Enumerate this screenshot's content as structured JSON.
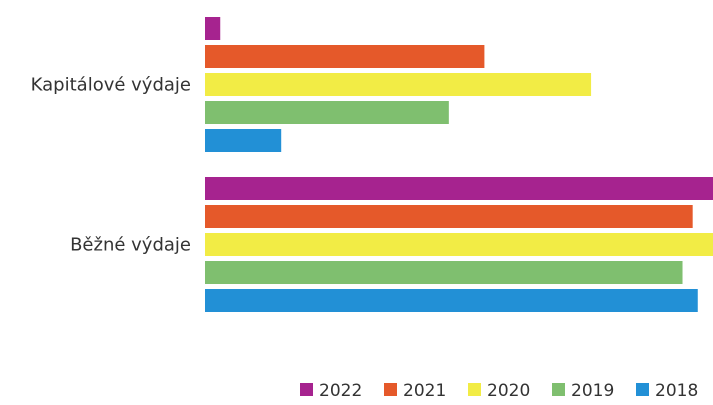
{
  "chart_data": {
    "type": "bar",
    "orientation": "horizontal",
    "categories": [
      "Kapitálové výdaje",
      "Běžné výdaje"
    ],
    "series": [
      {
        "name": "2022",
        "color": "#a6238f",
        "values": [
          3,
          100
        ]
      },
      {
        "name": "2021",
        "color": "#e5592a",
        "values": [
          55,
          96
        ]
      },
      {
        "name": "2020",
        "color": "#f2ec45",
        "values": [
          76,
          100
        ]
      },
      {
        "name": "2019",
        "color": "#7fbf6f",
        "values": [
          48,
          94
        ]
      },
      {
        "name": "2018",
        "color": "#2290d6",
        "values": [
          15,
          97
        ]
      }
    ],
    "xlim": [
      0,
      100
    ],
    "legend_position": "bottom-right",
    "grid": false
  }
}
